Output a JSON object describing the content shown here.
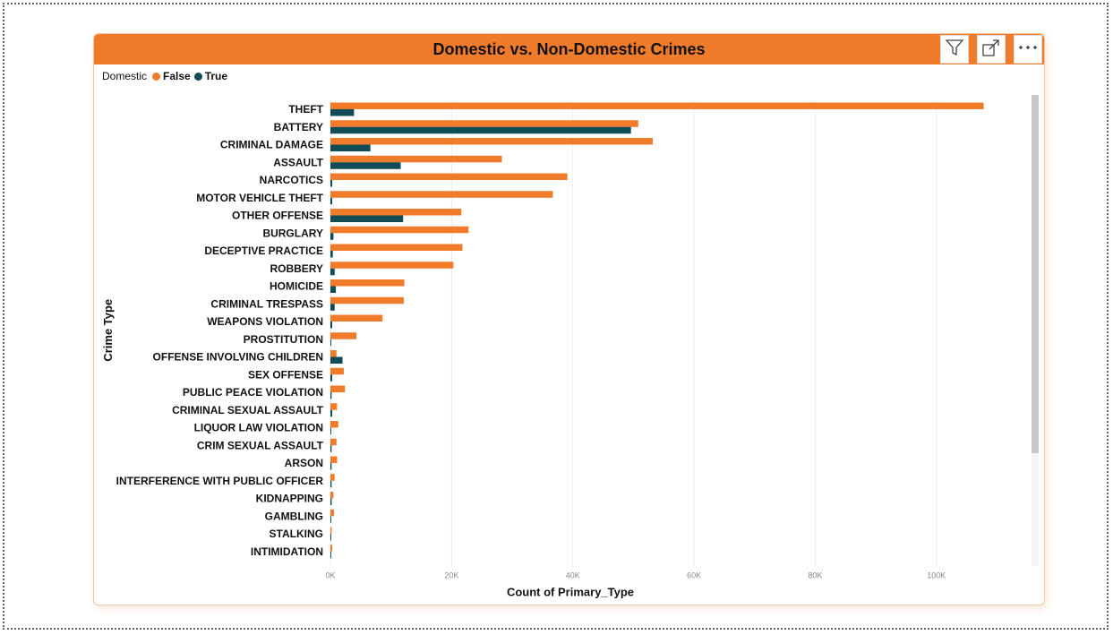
{
  "visual": {
    "title": "Domestic vs. Non-Domestic Crimes",
    "buttons": {
      "filter_icon": "filter-icon",
      "focus_icon": "focus-mode-icon",
      "more_icon": "more-options-icon"
    }
  },
  "legend": {
    "title": "Domestic",
    "items": [
      {
        "label": "False",
        "color": "#f07b2a"
      },
      {
        "label": "True",
        "color": "#0f4c56"
      }
    ]
  },
  "chart_data": {
    "type": "bar",
    "orientation": "horizontal",
    "title": "Domestic vs. Non-Domestic Crimes",
    "xlabel": "Count of Primary_Type",
    "ylabel": "Crime Type",
    "xlim": [
      0,
      112000
    ],
    "xticks": [
      "0K",
      "20K",
      "40K",
      "60K",
      "80K",
      "100K"
    ],
    "xtick_values": [
      0,
      20000,
      40000,
      60000,
      80000,
      100000
    ],
    "grid": true,
    "legend_position": "top-left",
    "categories": [
      "THEFT",
      "BATTERY",
      "CRIMINAL DAMAGE",
      "ASSAULT",
      "NARCOTICS",
      "MOTOR VEHICLE THEFT",
      "OTHER OFFENSE",
      "BURGLARY",
      "DECEPTIVE PRACTICE",
      "ROBBERY",
      "HOMICIDE",
      "CRIMINAL TRESPASS",
      "WEAPONS VIOLATION",
      "PROSTITUTION",
      "OFFENSE INVOLVING CHILDREN",
      "SEX OFFENSE",
      "PUBLIC PEACE VIOLATION",
      "CRIMINAL SEXUAL ASSAULT",
      "LIQUOR LAW VIOLATION",
      "CRIM SEXUAL ASSAULT",
      "ARSON",
      "INTERFERENCE WITH PUBLIC OFFICER",
      "KIDNAPPING",
      "GAMBLING",
      "STALKING",
      "INTIMIDATION"
    ],
    "series": [
      {
        "name": "False",
        "color": "#f07b2a",
        "values": [
          107800,
          50800,
          53200,
          28300,
          39100,
          36700,
          21600,
          22800,
          21800,
          20300,
          12200,
          12100,
          8600,
          4300,
          1000,
          2200,
          2400,
          1100,
          1300,
          1000,
          1100,
          700,
          500,
          600,
          200,
          300
        ]
      },
      {
        "name": "True",
        "color": "#0f4c56",
        "values": [
          3900,
          49600,
          6600,
          11600,
          300,
          300,
          12000,
          500,
          400,
          700,
          900,
          700,
          300,
          100,
          2000,
          300,
          200,
          300,
          100,
          200,
          200,
          200,
          200,
          100,
          100,
          100
        ]
      }
    ]
  }
}
